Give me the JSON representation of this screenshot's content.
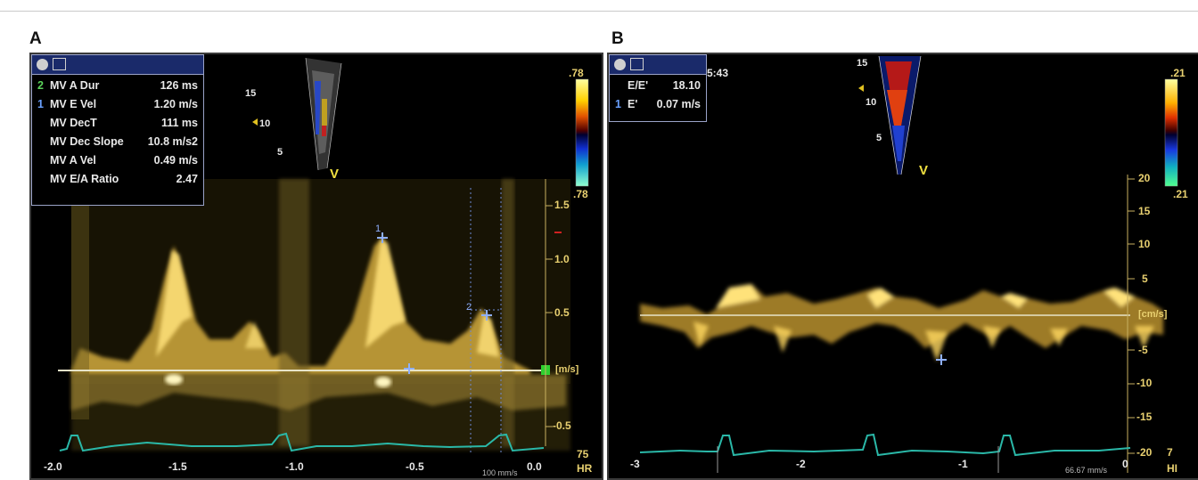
{
  "panels": {
    "a": {
      "letter": "A",
      "header_measure": [
        {
          "idx": "2",
          "name": "MV A Dur",
          "value": "126 ms",
          "idx_color": "#5bd35b"
        },
        {
          "idx": "1",
          "name": "MV E Vel",
          "value": "1.20 m/s",
          "idx_color": "#6aa0ff"
        },
        {
          "idx": "",
          "name": "MV DecT",
          "value": "111 ms",
          "idx_color": "#ffffff"
        },
        {
          "idx": "",
          "name": "MV Dec Slope",
          "value": "10.8 m/s2",
          "idx_color": "#ffffff"
        },
        {
          "idx": "",
          "name": "MV A Vel",
          "value": "0.49 m/s",
          "idx_color": "#ffffff"
        },
        {
          "idx": "",
          "name": "MV E/A Ratio",
          "value": "2.47",
          "idx_color": "#ffffff"
        }
      ],
      "colorbar_top": ".78",
      "colorbar_bottom": ".78",
      "yticks": [
        "1.5",
        "1.0",
        "0.5",
        "[m/s]",
        "-0.5"
      ],
      "xticks": [
        "-2.0",
        "-1.5",
        "-1.0",
        "-0.5",
        "0.0"
      ],
      "hr_value": "75",
      "hr_label": "HR",
      "speed": "100 mm/s",
      "sample_marker": "V",
      "sector_depths": [
        "15",
        "10",
        "5"
      ],
      "cursor_labels": [
        "1",
        "2"
      ]
    },
    "b": {
      "letter": "B",
      "header_measure": [
        {
          "idx": "",
          "name": "E/E'",
          "value": "18.10",
          "idx_color": "#ffffff"
        },
        {
          "idx": "1",
          "name": "E'",
          "value": "0.07 m/s",
          "idx_color": "#6aa0ff"
        }
      ],
      "time": "5:43",
      "colorbar_top": ".21",
      "colorbar_bottom": ".21",
      "yticks": [
        "20",
        "15",
        "10",
        "5",
        "[cm/s]",
        "-5",
        "-10",
        "-15",
        "-20"
      ],
      "xticks": [
        "-3",
        "-2",
        "-1",
        "0"
      ],
      "hr_value": "7",
      "hr_label": "HI",
      "speed": "66.67 mm/s",
      "sample_marker": "V",
      "sector_depths": [
        "15",
        "10",
        "5"
      ]
    }
  }
}
